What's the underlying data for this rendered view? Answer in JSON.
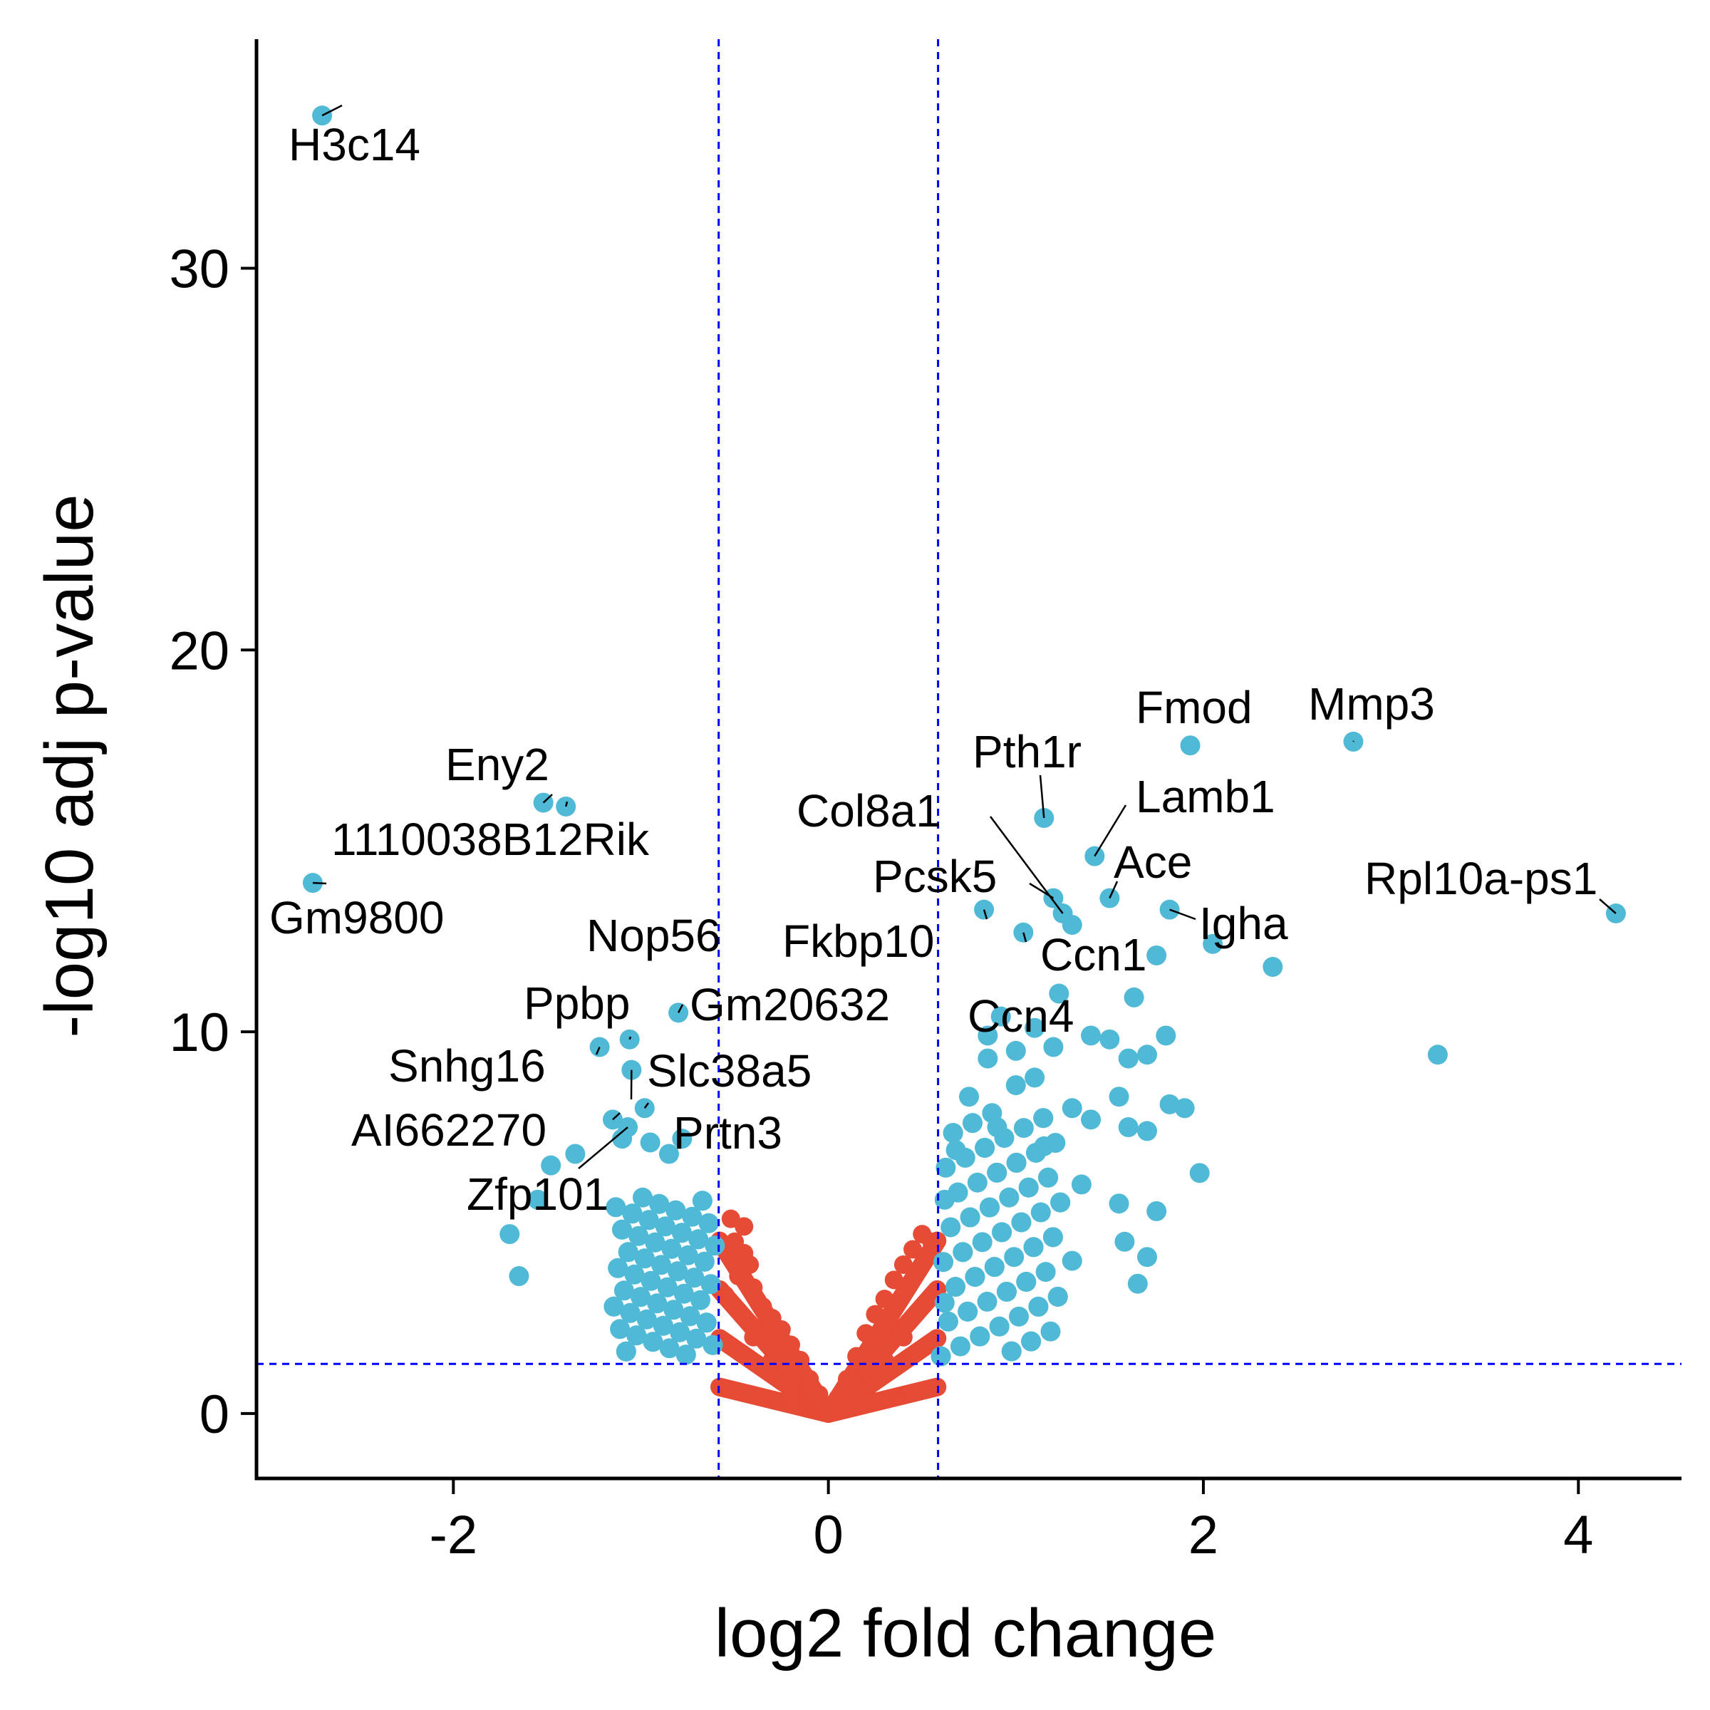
{
  "chart_data": {
    "type": "scatter",
    "title": "",
    "xlabel": "log2 fold change",
    "ylabel": "-log10 adj p-value",
    "xlim": [
      -3.05,
      4.55
    ],
    "ylim": [
      -1.7,
      36.0
    ],
    "xticks": [
      -2,
      0,
      2,
      4
    ],
    "xtick_labels": [
      "-2",
      "0",
      "2",
      "4"
    ],
    "yticks": [
      0,
      10,
      20,
      30
    ],
    "ytick_labels": [
      "0",
      "10",
      "20",
      "30"
    ],
    "grid": false,
    "legend": "none",
    "thresholds": {
      "log2fc": [
        -0.585,
        0.585
      ],
      "neg_log10_padj": 1.3,
      "line_color": "#0000ff",
      "line_style": "dashed"
    },
    "colors": {
      "significant": "#4fb9d6",
      "not_significant": "#e64b35"
    },
    "series": [
      {
        "key": "significant",
        "points": [
          [
            -2.7,
            34.0
          ],
          [
            -1.52,
            16.0
          ],
          [
            -1.4,
            15.9
          ],
          [
            -2.75,
            13.9
          ],
          [
            -0.8,
            10.5
          ],
          [
            -1.22,
            9.6
          ],
          [
            -1.06,
            9.8
          ],
          [
            -1.05,
            9.0
          ],
          [
            -0.98,
            8.0
          ],
          [
            -1.15,
            7.7
          ],
          [
            -1.07,
            7.5
          ],
          [
            -0.78,
            7.2
          ],
          [
            -1.1,
            7.2
          ],
          [
            -0.95,
            7.1
          ],
          [
            -0.85,
            6.8
          ],
          [
            -1.48,
            6.5
          ],
          [
            -1.35,
            6.8
          ],
          [
            -1.7,
            4.7
          ],
          [
            -1.65,
            3.6
          ],
          [
            -1.55,
            5.6
          ],
          [
            1.15,
            15.6
          ],
          [
            1.93,
            17.5
          ],
          [
            2.8,
            17.6
          ],
          [
            1.42,
            14.6
          ],
          [
            1.5,
            13.5
          ],
          [
            0.83,
            13.2
          ],
          [
            1.2,
            13.5
          ],
          [
            1.25,
            13.1
          ],
          [
            1.3,
            12.8
          ],
          [
            1.04,
            12.6
          ],
          [
            1.82,
            13.2
          ],
          [
            2.05,
            12.3
          ],
          [
            1.75,
            12.0
          ],
          [
            2.37,
            11.7
          ],
          [
            1.63,
            10.9
          ],
          [
            1.23,
            11.0
          ],
          [
            4.2,
            13.1
          ],
          [
            3.25,
            9.4
          ],
          [
            1.98,
            6.3
          ],
          [
            1.8,
            9.9
          ],
          [
            0.92,
            10.4
          ],
          [
            1.1,
            10.1
          ],
          [
            0.85,
            9.9
          ],
          [
            1.4,
            9.9
          ],
          [
            1.5,
            9.8
          ],
          [
            1.7,
            9.4
          ],
          [
            1.6,
            9.3
          ],
          [
            1.0,
            9.5
          ],
          [
            1.2,
            9.6
          ],
          [
            0.85,
            9.3
          ],
          [
            1.82,
            8.1
          ],
          [
            1.9,
            8.0
          ],
          [
            1.55,
            8.3
          ],
          [
            1.6,
            7.5
          ],
          [
            1.7,
            7.4
          ],
          [
            1.0,
            8.6
          ],
          [
            1.1,
            8.8
          ],
          [
            1.3,
            8.0
          ],
          [
            1.4,
            7.7
          ],
          [
            0.75,
            8.3
          ],
          [
            0.9,
            7.5
          ],
          [
            1.15,
            7.0
          ],
          [
            0.68,
            6.9
          ],
          [
            1.35,
            6.0
          ],
          [
            1.55,
            5.5
          ],
          [
            1.75,
            5.3
          ],
          [
            1.7,
            4.1
          ],
          [
            1.58,
            4.5
          ],
          [
            1.65,
            3.4
          ],
          [
            1.3,
            4.0
          ],
          [
            0.62,
            5.6
          ],
          [
            0.62,
            2.9
          ]
        ]
      },
      {
        "key": "not_significant",
        "points": [
          [
            -0.52,
            5.1
          ],
          [
            -0.45,
            4.9
          ],
          [
            -0.5,
            4.5
          ],
          [
            -0.45,
            4.2
          ],
          [
            -0.42,
            3.9
          ],
          [
            -0.48,
            3.6
          ],
          [
            -0.4,
            3.3
          ],
          [
            -0.55,
            3.1
          ],
          [
            -0.35,
            2.8
          ],
          [
            -0.3,
            2.5
          ],
          [
            -0.25,
            2.2
          ],
          [
            -0.2,
            1.8
          ],
          [
            -0.15,
            1.4
          ],
          [
            -0.1,
            0.9
          ],
          [
            -0.05,
            0.5
          ],
          [
            0.0,
            0.2
          ],
          [
            0.05,
            0.4
          ],
          [
            0.1,
            0.9
          ],
          [
            0.15,
            1.5
          ],
          [
            0.2,
            2.1
          ],
          [
            0.25,
            2.6
          ],
          [
            0.3,
            3.0
          ],
          [
            0.35,
            3.5
          ],
          [
            0.4,
            3.9
          ],
          [
            0.45,
            4.3
          ],
          [
            0.5,
            4.7
          ],
          [
            0.55,
            4.5
          ],
          [
            -0.3,
            1.4
          ],
          [
            0.3,
            1.4
          ],
          [
            -0.4,
            2.0
          ],
          [
            0.4,
            2.0
          ]
        ]
      }
    ],
    "labels": [
      {
        "gene": "H3c14",
        "x": -2.7,
        "y": 34.0
      },
      {
        "gene": "Eny2",
        "x": -1.52,
        "y": 16.0
      },
      {
        "gene": "1110038B12Rik",
        "x": -1.4,
        "y": 15.9
      },
      {
        "gene": "Gm9800",
        "x": -2.75,
        "y": 13.9
      },
      {
        "gene": "Nop56",
        "x": -0.8,
        "y": 10.5
      },
      {
        "gene": "Ppbp",
        "x": -1.06,
        "y": 9.8
      },
      {
        "gene": "Gm20632",
        "x": -1.06,
        "y": 9.8
      },
      {
        "gene": "Snhg16",
        "x": -1.22,
        "y": 9.6
      },
      {
        "gene": "Slc38a5",
        "x": -1.05,
        "y": 9.0
      },
      {
        "gene": "AI662270",
        "x": -1.15,
        "y": 7.7
      },
      {
        "gene": "Prtn3",
        "x": -0.98,
        "y": 8.0
      },
      {
        "gene": "Zfp101",
        "x": -1.07,
        "y": 7.5
      },
      {
        "gene": "Fmod",
        "x": 1.93,
        "y": 17.5
      },
      {
        "gene": "Mmp3",
        "x": 2.8,
        "y": 17.6
      },
      {
        "gene": "Pth1r",
        "x": 1.15,
        "y": 15.6
      },
      {
        "gene": "Col8a1",
        "x": 1.25,
        "y": 13.1
      },
      {
        "gene": "Lamb1",
        "x": 1.42,
        "y": 14.6
      },
      {
        "gene": "Ace",
        "x": 1.5,
        "y": 13.5
      },
      {
        "gene": "Pcsk5",
        "x": 1.2,
        "y": 13.5
      },
      {
        "gene": "Rpl10a-ps1",
        "x": 4.2,
        "y": 13.1
      },
      {
        "gene": "Igha",
        "x": 1.82,
        "y": 13.2
      },
      {
        "gene": "Fkbp10",
        "x": 0.83,
        "y": 13.2
      },
      {
        "gene": "Ccn1",
        "x": 1.3,
        "y": 12.8
      },
      {
        "gene": "Ccn4",
        "x": 1.04,
        "y": 12.6
      }
    ]
  }
}
